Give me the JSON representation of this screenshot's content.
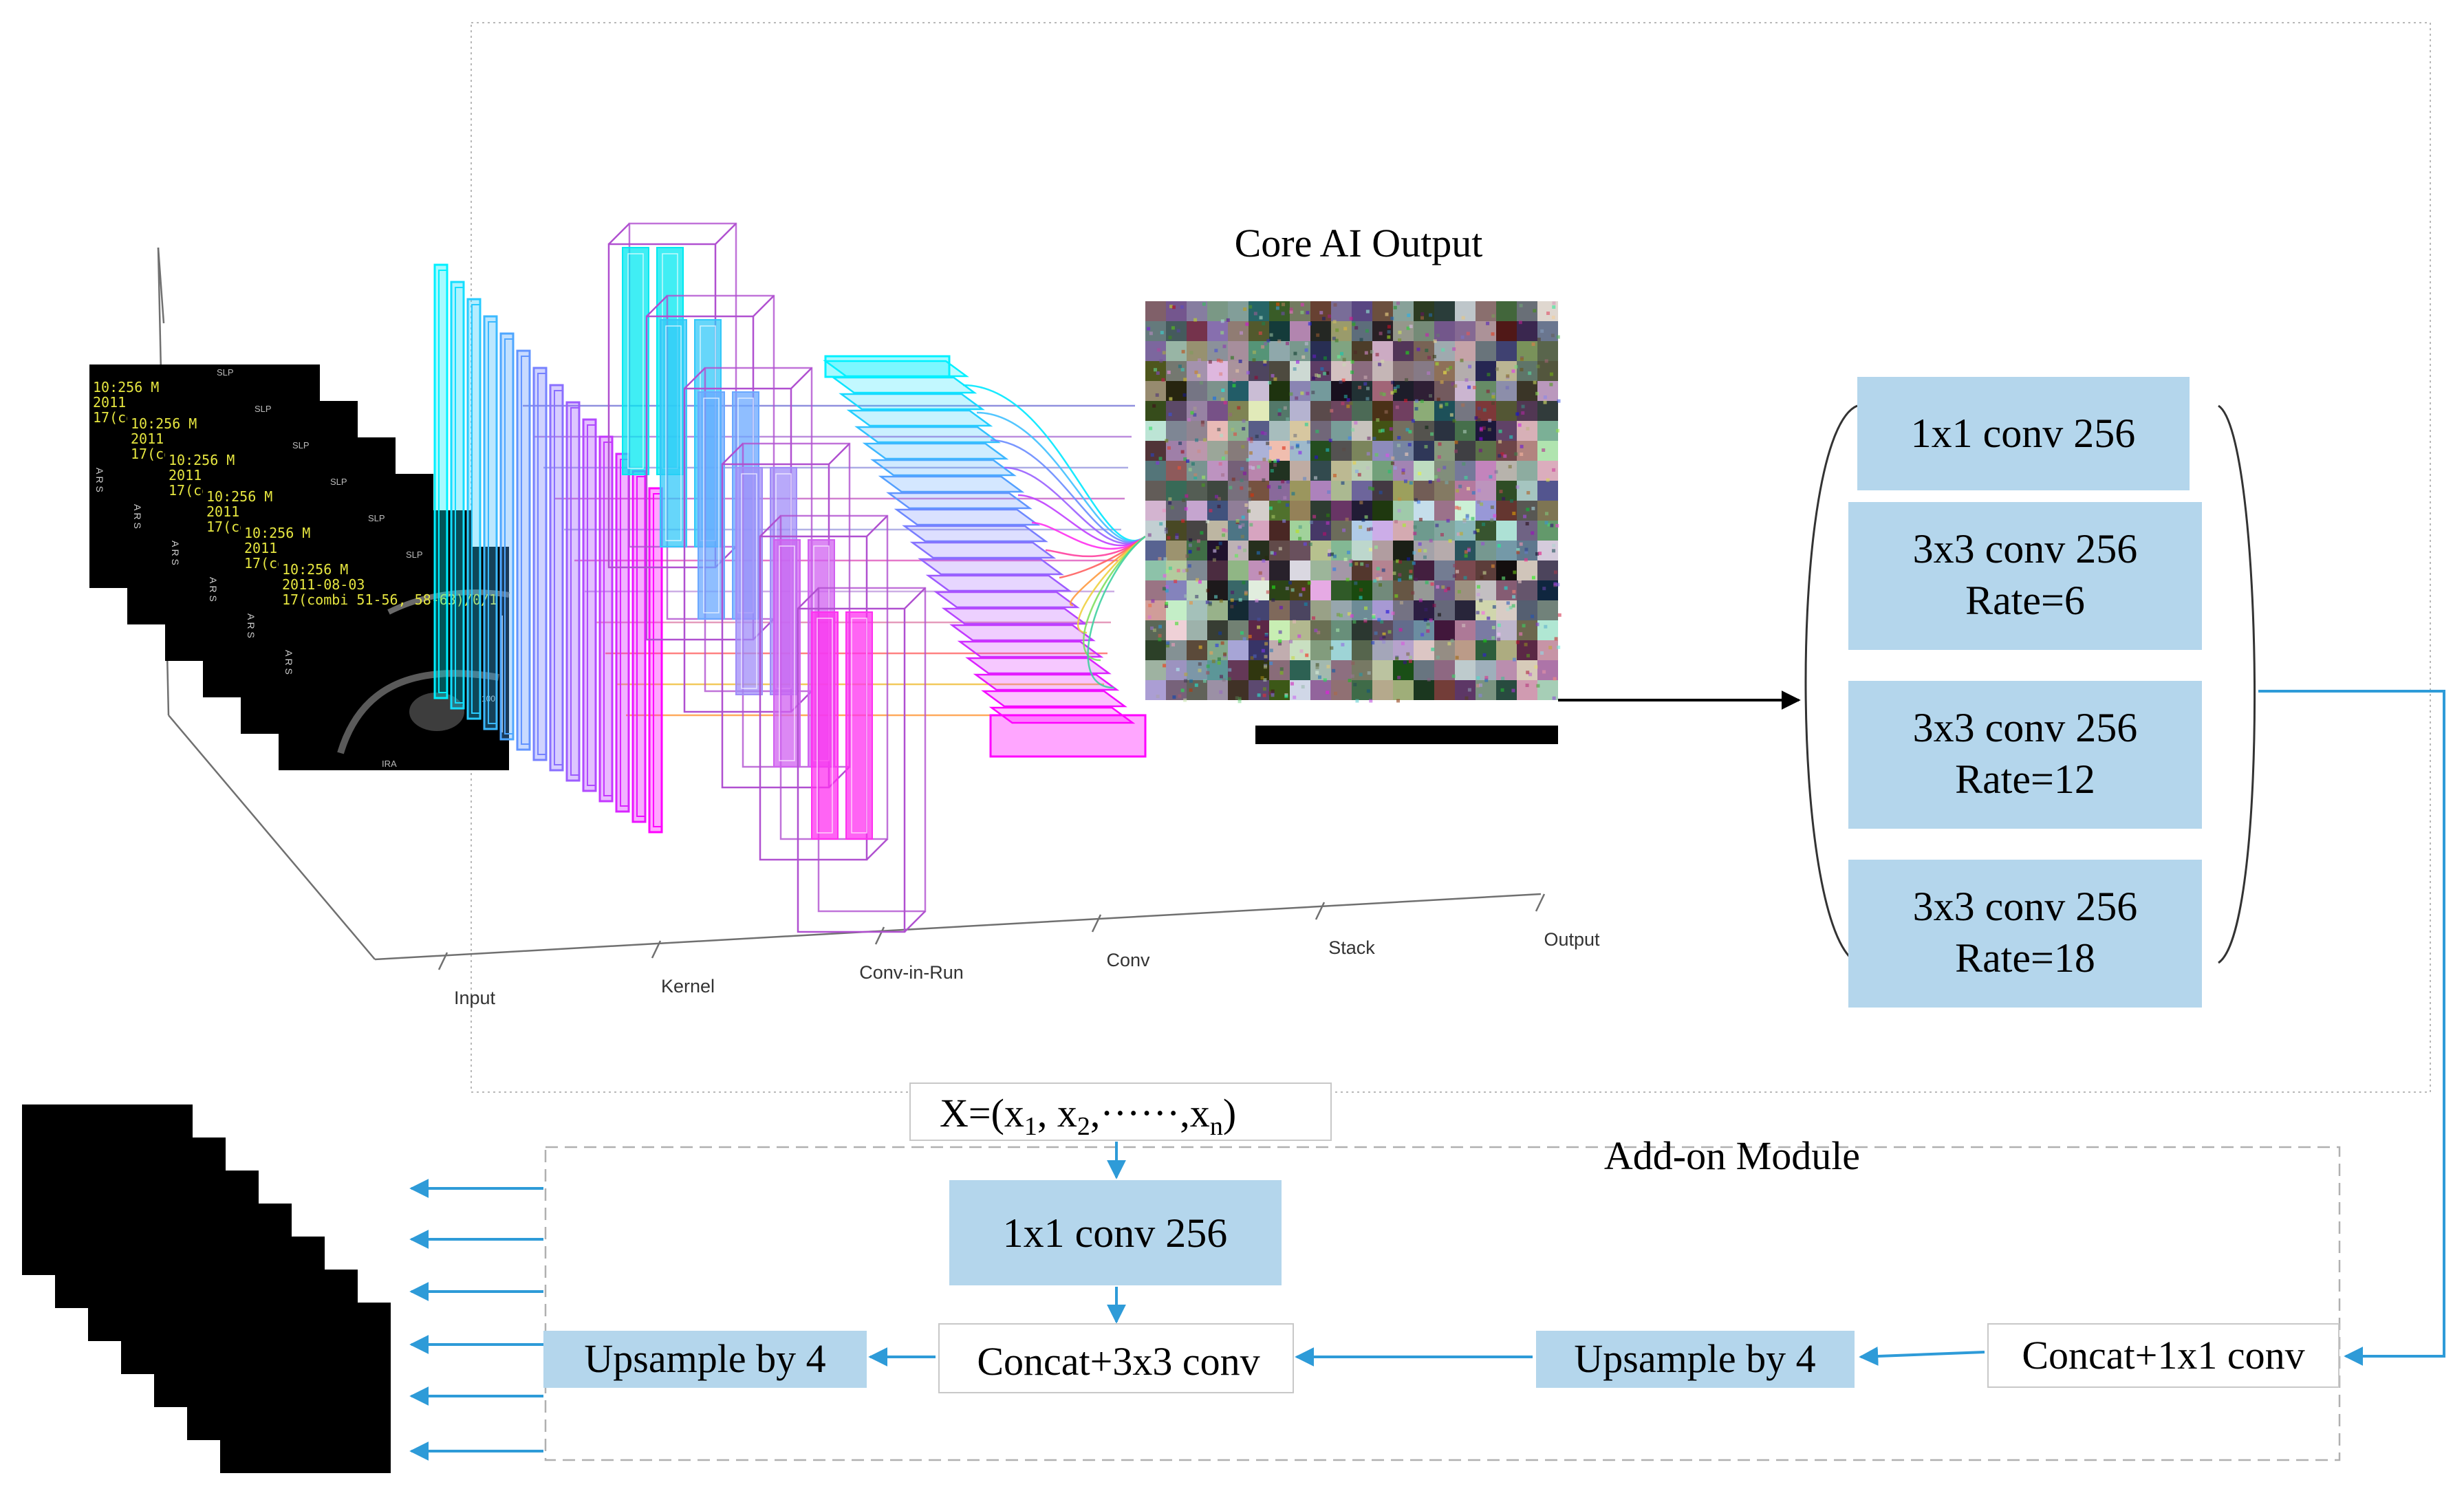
{
  "core_title": "Core AI Output",
  "axis_labels": [
    "Input",
    "Kernel",
    "Conv-in-Run",
    "Conv",
    "Stack",
    "Output"
  ],
  "mri_overlay": {
    "time": "10:256  M",
    "year": "2011-",
    "date": "2011-08-03",
    "combi": "17(combi 51-56, 58-63)/0/1",
    "combi_short": "17(co",
    "slp": "SLP",
    "ars": "A R S",
    "ira": "IRA",
    "scale": "100"
  },
  "aspp": {
    "b1": "1x1 conv 256",
    "b2_l1": "3x3 conv 256",
    "b2_l2": "Rate=6",
    "b3_l1": "3x3 conv 256",
    "b3_l2": "Rate=12",
    "b4_l1": "3x3 conv 256",
    "b4_l2": "Rate=18"
  },
  "input_vector": {
    "prefix": "X=(x",
    "s1": "1",
    "sep1": ", x",
    "s2": "2",
    "sep2": ",······,x",
    "sn": "n",
    "suffix": ")"
  },
  "addon": {
    "title": "Add-on Module",
    "conv1x1": "1x1 conv 256",
    "concat3x3": "Concat+3x3 conv",
    "up_left": "Upsample by 4",
    "up_right": "Upsample by 4",
    "concat1x1": "Concat+1x1 conv"
  },
  "colors": {
    "box_fill": "#b4d6ec",
    "arrow": "#2e9bd8",
    "cyan": "#00f0ff",
    "magenta": "#ff00ff",
    "purple": "#b050d0"
  }
}
